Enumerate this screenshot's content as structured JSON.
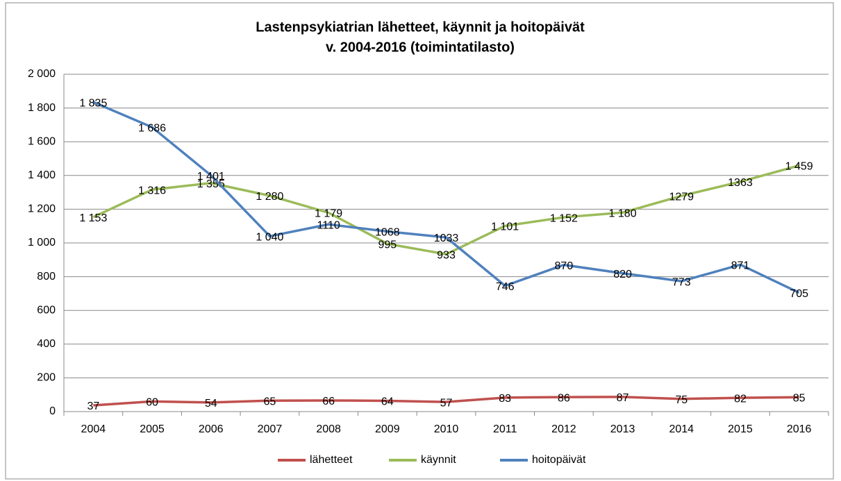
{
  "chart_data": {
    "type": "line",
    "title": "Lastenpsykiatrian lähetteet, käynnit ja hoitopäivät",
    "subtitle": "v. 2004-2016 (toimintatilasto)",
    "categories": [
      "2004",
      "2005",
      "2006",
      "2007",
      "2008",
      "2009",
      "2010",
      "2011",
      "2012",
      "2013",
      "2014",
      "2015",
      "2016"
    ],
    "series": [
      {
        "name": "lähetteet",
        "color": "#c0504d",
        "values": [
          37,
          60,
          54,
          65,
          66,
          64,
          57,
          83,
          86,
          87,
          75,
          82,
          85
        ]
      },
      {
        "name": "käynnit",
        "color": "#9bbb59",
        "values": [
          1153,
          1316,
          1355,
          1280,
          1179,
          995,
          933,
          1101,
          1152,
          1180,
          1279,
          1363,
          1459
        ],
        "value_labels": [
          "1 153",
          "1 316",
          "1 355",
          "1 280",
          "1 179",
          "995",
          "933",
          "1 101",
          "1 152",
          "1 180",
          "1279",
          "1363",
          "1 459"
        ]
      },
      {
        "name": "hoitopäivät",
        "color": "#4f81bd",
        "values": [
          1835,
          1686,
          1401,
          1040,
          1110,
          1068,
          1033,
          746,
          870,
          820,
          773,
          871,
          705
        ],
        "value_labels": [
          "1 835",
          "1 686",
          "1 401",
          "1 040",
          "1110",
          "1068",
          "1033",
          "746",
          "870",
          "820",
          "773",
          "871",
          "705"
        ]
      }
    ],
    "ylim": [
      0,
      2000
    ],
    "yticks": [
      0,
      200,
      400,
      600,
      800,
      {
        "value": 1000,
        "label": "1 000"
      },
      {
        "value": 1200,
        "label": "1 200"
      },
      {
        "value": 1400,
        "label": "1 400"
      },
      {
        "value": 1600,
        "label": "1 600"
      },
      {
        "value": 1800,
        "label": "1 800"
      },
      {
        "value": 2000,
        "label": "2 000"
      }
    ],
    "grid": true,
    "legend": "bottom"
  }
}
